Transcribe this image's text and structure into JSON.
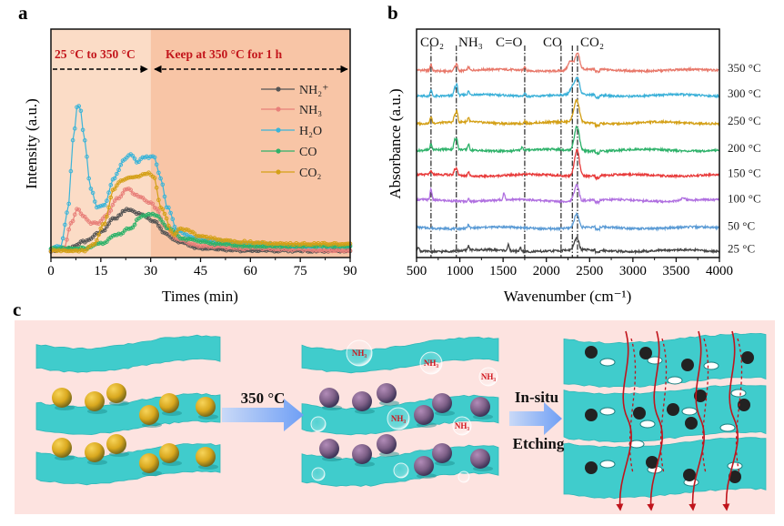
{
  "panels": {
    "a": "a",
    "b": "b",
    "c": "c"
  },
  "chart_data": [
    {
      "panel": "a",
      "type": "line",
      "xlabel": "Times (min)",
      "ylabel": "Intensity (a.u.)",
      "xlim": [
        0,
        90
      ],
      "xticks": [
        0,
        15,
        30,
        45,
        60,
        75,
        90
      ],
      "ylim": [
        0,
        100
      ],
      "grid": false,
      "legend_position": "top-right",
      "phases": [
        {
          "label": "25 °C to 350 °C",
          "range": [
            0,
            30
          ],
          "color": "#fbdcc6"
        },
        {
          "label": "Keep at 350 °C for 1 h",
          "range": [
            30,
            90
          ],
          "color": "#f8c5a6"
        }
      ],
      "series": [
        {
          "name": "NH₂⁺",
          "color": "#555555",
          "points": [
            [
              0,
              3
            ],
            [
              5,
              4
            ],
            [
              10,
              7
            ],
            [
              15,
              11
            ],
            [
              19,
              17
            ],
            [
              23,
              21
            ],
            [
              27,
              19
            ],
            [
              31,
              16
            ],
            [
              34,
              11
            ],
            [
              38,
              7
            ],
            [
              45,
              4
            ],
            [
              60,
              3
            ],
            [
              90,
              3
            ]
          ]
        },
        {
          "name": "NH₃",
          "color": "#e8807a",
          "points": [
            [
              0,
              3
            ],
            [
              4,
              4
            ],
            [
              6,
              15
            ],
            [
              8,
              21
            ],
            [
              10,
              18
            ],
            [
              12,
              15
            ],
            [
              14,
              15
            ],
            [
              17,
              19
            ],
            [
              20,
              26
            ],
            [
              23,
              30
            ],
            [
              26,
              27
            ],
            [
              30,
              24
            ],
            [
              32,
              21
            ],
            [
              34,
              14
            ],
            [
              38,
              8
            ],
            [
              45,
              5
            ],
            [
              60,
              4
            ],
            [
              90,
              3
            ]
          ]
        },
        {
          "name": "H₂O",
          "color": "#3bb4d8",
          "points": [
            [
              0,
              4
            ],
            [
              3,
              5
            ],
            [
              5,
              20
            ],
            [
              7,
              55
            ],
            [
              8,
              67
            ],
            [
              9,
              64
            ],
            [
              10,
              52
            ],
            [
              12,
              30
            ],
            [
              14,
              22
            ],
            [
              16,
              23
            ],
            [
              19,
              35
            ],
            [
              22,
              43
            ],
            [
              24,
              45
            ],
            [
              26,
              42
            ],
            [
              28,
              44
            ],
            [
              31,
              44
            ],
            [
              33,
              35
            ],
            [
              35,
              22
            ],
            [
              38,
              12
            ],
            [
              42,
              9
            ],
            [
              50,
              7
            ],
            [
              60,
              6
            ],
            [
              75,
              5
            ],
            [
              90,
              5
            ]
          ]
        },
        {
          "name": "CO",
          "color": "#2eb26a",
          "points": [
            [
              0,
              4
            ],
            [
              10,
              4
            ],
            [
              15,
              6
            ],
            [
              20,
              10
            ],
            [
              24,
              13
            ],
            [
              27,
              18
            ],
            [
              30,
              19
            ],
            [
              32,
              18
            ],
            [
              35,
              13
            ],
            [
              40,
              8
            ],
            [
              50,
              6
            ],
            [
              60,
              5
            ],
            [
              90,
              5
            ]
          ]
        },
        {
          "name": "CO₂",
          "color": "#d4a017",
          "points": [
            [
              0,
              3
            ],
            [
              10,
              3
            ],
            [
              13,
              6
            ],
            [
              16,
              15
            ],
            [
              19,
              30
            ],
            [
              21,
              34
            ],
            [
              25,
              35
            ],
            [
              29,
              37
            ],
            [
              31,
              35
            ],
            [
              33,
              22
            ],
            [
              37,
              10
            ],
            [
              39,
              13
            ],
            [
              41,
              12
            ],
            [
              45,
              9
            ],
            [
              55,
              7
            ],
            [
              70,
              6
            ],
            [
              90,
              6
            ]
          ]
        }
      ]
    },
    {
      "panel": "b",
      "type": "line",
      "xlabel": "Wavenumber (cm⁻¹)",
      "ylabel": "Absorbance (a.u.)",
      "xlim": [
        500,
        4000
      ],
      "xticks": [
        500,
        1000,
        1500,
        2000,
        2500,
        3000,
        3500,
        4000
      ],
      "ylim": [
        0,
        100
      ],
      "grid": false,
      "reference_lines": [
        {
          "label": "CO₂",
          "x": 667,
          "style": "dash-dot"
        },
        {
          "label": "NH₃",
          "x": 960,
          "style": "dash-dot"
        },
        {
          "label": "C=O",
          "x": 1750,
          "style": "dash-dot"
        },
        {
          "label": "CO",
          "x": 2170,
          "style": "dash-dot"
        },
        {
          "label": "",
          "x": 2300,
          "style": "dash-dot"
        },
        {
          "label": "CO₂",
          "x": 2360,
          "style": "dash-dot"
        }
      ],
      "series": [
        {
          "name": "350 °C",
          "color": "#e8786a",
          "offset": 82,
          "peaks": [
            [
              667,
              3
            ],
            [
              940,
              2
            ],
            [
              965,
              3
            ],
            [
              1100,
              1.5
            ],
            [
              1750,
              2
            ],
            [
              2280,
              4
            ],
            [
              2360,
              7
            ]
          ]
        },
        {
          "name": "300 °C",
          "color": "#3ab0d8",
          "offset": 71,
          "peaks": [
            [
              667,
              3
            ],
            [
              940,
              3
            ],
            [
              965,
              5
            ],
            [
              1100,
              1.5
            ],
            [
              1750,
              1.5
            ],
            [
              2300,
              3
            ],
            [
              2360,
              7
            ]
          ]
        },
        {
          "name": "250 °C",
          "color": "#d4a017",
          "offset": 59,
          "peaks": [
            [
              667,
              3
            ],
            [
              940,
              3
            ],
            [
              965,
              5
            ],
            [
              1100,
              2
            ],
            [
              1750,
              1
            ],
            [
              2330,
              4
            ],
            [
              2360,
              7
            ]
          ]
        },
        {
          "name": "200 °C",
          "color": "#2eb26a",
          "offset": 47,
          "peaks": [
            [
              667,
              2.5
            ],
            [
              940,
              4
            ],
            [
              965,
              5
            ],
            [
              1100,
              2.5
            ],
            [
              1720,
              1.5
            ],
            [
              2340,
              4
            ],
            [
              2360,
              7
            ]
          ]
        },
        {
          "name": "150 °C",
          "color": "#e83a3a",
          "offset": 36,
          "peaks": [
            [
              667,
              1.5
            ],
            [
              940,
              2.5
            ],
            [
              965,
              3
            ],
            [
              1100,
              2
            ],
            [
              2345,
              5
            ],
            [
              2360,
              7
            ]
          ]
        },
        {
          "name": "100 °C",
          "color": "#b070e0",
          "offset": 25,
          "peaks": [
            [
              667,
              5
            ],
            [
              1100,
              1
            ],
            [
              1510,
              3
            ],
            [
              2350,
              7
            ],
            [
              3580,
              1
            ]
          ]
        },
        {
          "name": "50 °C",
          "color": "#5b9bd5",
          "offset": 13,
          "peaks": [
            [
              1100,
              1.5
            ],
            [
              2350,
              6
            ]
          ]
        },
        {
          "name": "25 °C",
          "color": "#444444",
          "offset": 3,
          "peaks": [
            [
              520,
              2
            ],
            [
              1100,
              2
            ],
            [
              1560,
              2.5
            ],
            [
              1700,
              1.5
            ],
            [
              2350,
              5
            ]
          ]
        }
      ]
    }
  ],
  "scheme": {
    "step1_label": "350 °C",
    "step2_label_line1": "In-situ",
    "step2_label_line2": "Etching",
    "bubble_labels": [
      "NH₃",
      "NH₃",
      "NH₃",
      "NH₃",
      "NH₃"
    ],
    "colors": {
      "background": "#fde3e0",
      "sheet": "#40cccc",
      "precursor": "#e2b32a",
      "intermediate": "#8a6a90",
      "particle": "#222222",
      "flow_arrow": "#c0141c",
      "process_arrow": "#8fb4f5"
    }
  }
}
